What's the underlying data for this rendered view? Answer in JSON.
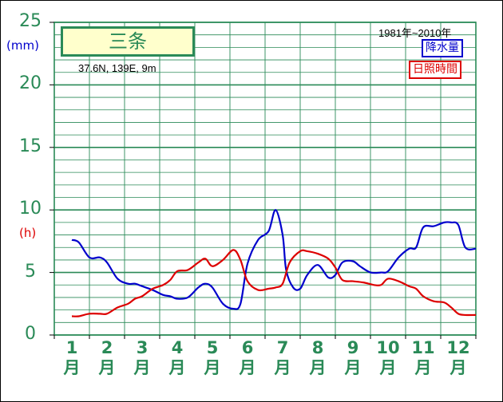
{
  "title": "三条",
  "location": "37.6N, 139E, 9m",
  "period": "1981年~2010年",
  "units": {
    "precip": "(mm)",
    "sunshine": "(h)"
  },
  "legend": {
    "precip": "降水量",
    "sunshine": "日照時間"
  },
  "colors": {
    "precip": "#0000cc",
    "sunshine": "#dd0000",
    "grid": "#2a8a57",
    "title_fill": "#ffffcc"
  },
  "chart_data": {
    "type": "line",
    "ylim": [
      0,
      25
    ],
    "yticks": [
      "0",
      "5",
      "10",
      "15",
      "20",
      "25"
    ],
    "month_labels": [
      {
        "num": "1",
        "unit": "月"
      },
      {
        "num": "2",
        "unit": "月"
      },
      {
        "num": "3",
        "unit": "月"
      },
      {
        "num": "4",
        "unit": "月"
      },
      {
        "num": "5",
        "unit": "月"
      },
      {
        "num": "6",
        "unit": "月"
      },
      {
        "num": "7",
        "unit": "月"
      },
      {
        "num": "8",
        "unit": "月"
      },
      {
        "num": "9",
        "unit": "月"
      },
      {
        "num": "10",
        "unit": "月"
      },
      {
        "num": "11",
        "unit": "月"
      },
      {
        "num": "12",
        "unit": "月"
      }
    ],
    "series": [
      {
        "name": "降水量",
        "color": "#0000cc",
        "x": [
          1,
          1.2,
          1.5,
          1.8,
          2,
          2.3,
          2.6,
          2.8,
          3,
          3.3,
          3.6,
          3.8,
          4,
          4.3,
          4.6,
          4.8,
          5,
          5.3,
          5.6,
          5.8,
          6,
          6.3,
          6.6,
          6.8,
          7,
          7.1,
          7.3,
          7.5,
          7.7,
          8,
          8.3,
          8.5,
          8.7,
          9,
          9.2,
          9.5,
          9.8,
          10,
          10.3,
          10.6,
          10.8,
          11,
          11.3,
          11.6,
          11.8,
          12,
          12.2,
          12.5
        ],
        "y": [
          7.6,
          7.4,
          6.2,
          6.2,
          5.8,
          4.5,
          4.1,
          4.1,
          3.9,
          3.6,
          3.2,
          3.1,
          2.9,
          3.0,
          3.8,
          4.1,
          3.8,
          2.5,
          2.1,
          2.5,
          5.7,
          7.6,
          8.3,
          10.0,
          8.0,
          5.2,
          3.8,
          3.7,
          4.8,
          5.6,
          4.6,
          4.8,
          5.8,
          5.9,
          5.5,
          5.0,
          5.0,
          5.1,
          6.2,
          6.9,
          7.0,
          8.6,
          8.7,
          9.0,
          9.0,
          8.8,
          7.0,
          6.9
        ]
      },
      {
        "name": "日照時間",
        "color": "#dd0000",
        "x": [
          1,
          1.2,
          1.5,
          1.8,
          2,
          2.3,
          2.6,
          2.8,
          3,
          3.3,
          3.6,
          3.8,
          4,
          4.3,
          4.6,
          4.8,
          5,
          5.3,
          5.6,
          5.8,
          6,
          6.3,
          6.6,
          6.8,
          7,
          7.2,
          7.5,
          7.7,
          8,
          8.3,
          8.5,
          8.7,
          9,
          9.3,
          9.6,
          9.8,
          10,
          10.3,
          10.6,
          10.8,
          11,
          11.3,
          11.6,
          11.8,
          12,
          12.2,
          12.5
        ],
        "y": [
          1.5,
          1.5,
          1.7,
          1.7,
          1.7,
          2.2,
          2.5,
          2.9,
          3.1,
          3.7,
          4.0,
          4.4,
          5.1,
          5.2,
          5.8,
          6.1,
          5.5,
          6.0,
          6.8,
          6.0,
          4.3,
          3.6,
          3.7,
          3.8,
          4.1,
          5.8,
          6.7,
          6.7,
          6.5,
          6.1,
          5.4,
          4.4,
          4.3,
          4.2,
          4.0,
          4.0,
          4.5,
          4.3,
          3.9,
          3.7,
          3.1,
          2.7,
          2.6,
          2.2,
          1.7,
          1.6,
          1.6
        ]
      }
    ]
  }
}
